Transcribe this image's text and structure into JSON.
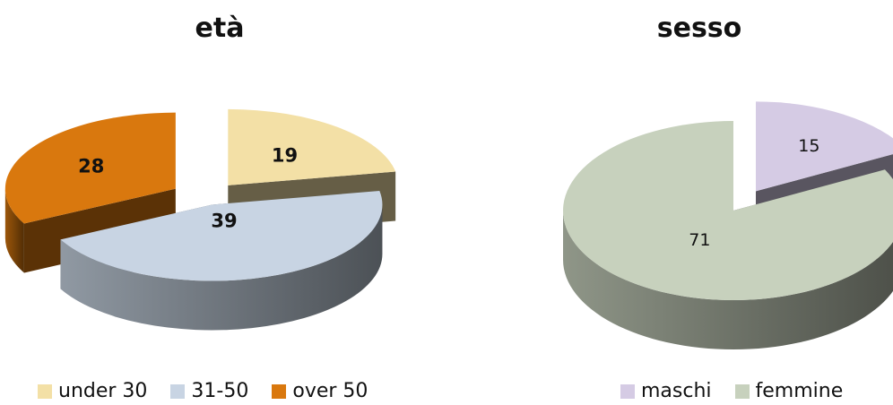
{
  "chart_data": [
    {
      "type": "pie",
      "title": "età",
      "categories": [
        "under 30",
        "31-50",
        "over 50"
      ],
      "values": [
        19,
        39,
        28
      ],
      "colors": [
        "#f3e0a6",
        "#c8d4e3",
        "#d9780e"
      ],
      "legend": "bottom"
    },
    {
      "type": "pie",
      "title": "sesso",
      "categories": [
        "maschi",
        "femmine"
      ],
      "values": [
        15,
        71
      ],
      "colors": [
        "#d5cbe4",
        "#c7d1bd"
      ],
      "legend": "bottom"
    }
  ]
}
